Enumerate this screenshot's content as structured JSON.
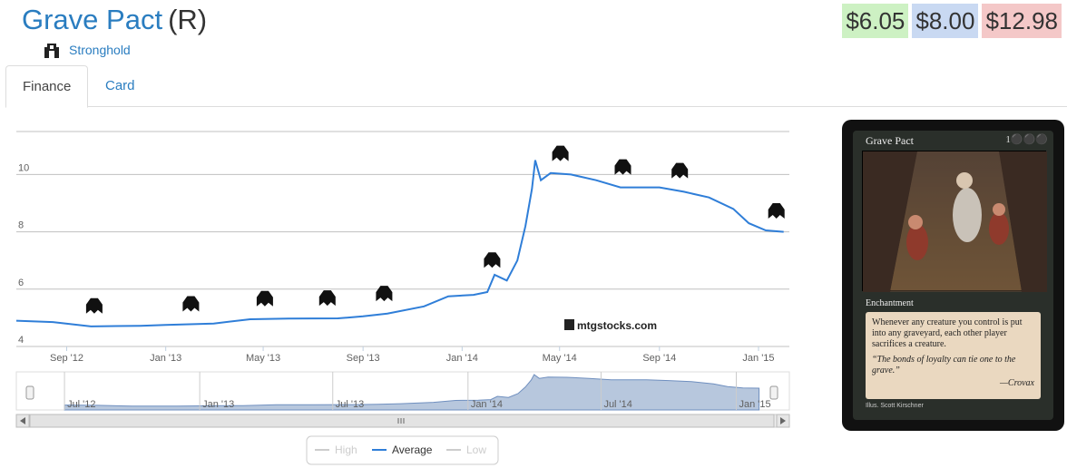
{
  "header": {
    "card_name": "Grave Pact",
    "rarity": "(R)",
    "set_name": "Stronghold",
    "set_icon": "stronghold-set-icon"
  },
  "prices": {
    "low": "$6.05",
    "average": "$8.00",
    "high": "$12.98"
  },
  "tabs": [
    {
      "label": "Finance",
      "active": true
    },
    {
      "label": "Card",
      "active": false
    }
  ],
  "chart_data": {
    "type": "line",
    "watermark": "mtgstocks.com",
    "y_ticks": [
      "4",
      "6",
      "8",
      "10"
    ],
    "ylim": [
      4,
      11.5
    ],
    "x_ticks": [
      "Sep '12",
      "Jan '13",
      "May '13",
      "Sep '13",
      "Jan '14",
      "May '14",
      "Sep '14",
      "Jan '15"
    ],
    "navigator_ticks": [
      "Jul '12",
      "Jan '13",
      "Jul '13",
      "Jan '14",
      "Jul '14",
      "Jan '15"
    ],
    "legend": [
      "High",
      "Average",
      "Low"
    ],
    "series": [
      {
        "name": "Average",
        "color": "#2f7ed8",
        "points": [
          [
            "2012-07-01",
            4.9
          ],
          [
            "2012-08-15",
            4.85
          ],
          [
            "2012-10-01",
            4.7
          ],
          [
            "2012-12-01",
            4.72
          ],
          [
            "2013-01-01",
            4.75
          ],
          [
            "2013-03-01",
            4.8
          ],
          [
            "2013-04-15",
            4.95
          ],
          [
            "2013-06-01",
            4.97
          ],
          [
            "2013-08-01",
            4.98
          ],
          [
            "2013-09-01",
            5.05
          ],
          [
            "2013-10-01",
            5.15
          ],
          [
            "2013-11-15",
            5.4
          ],
          [
            "2013-12-15",
            5.75
          ],
          [
            "2014-01-15",
            5.8
          ],
          [
            "2014-02-01",
            5.9
          ],
          [
            "2014-02-10",
            6.5
          ],
          [
            "2014-02-25",
            6.3
          ],
          [
            "2014-03-10",
            7.0
          ],
          [
            "2014-03-20",
            8.2
          ],
          [
            "2014-03-28",
            9.5
          ],
          [
            "2014-04-01",
            10.5
          ],
          [
            "2014-04-08",
            9.8
          ],
          [
            "2014-04-20",
            10.05
          ],
          [
            "2014-05-15",
            10.0
          ],
          [
            "2014-06-15",
            9.8
          ],
          [
            "2014-07-15",
            9.55
          ],
          [
            "2014-09-01",
            9.55
          ],
          [
            "2014-10-01",
            9.4
          ],
          [
            "2014-11-01",
            9.2
          ],
          [
            "2014-12-01",
            8.8
          ],
          [
            "2014-12-20",
            8.3
          ],
          [
            "2015-01-10",
            8.05
          ],
          [
            "2015-02-01",
            8.0
          ]
        ]
      }
    ],
    "set_release_markers": [
      {
        "date": "2012-10-05",
        "icon": "return-to-ravnica-icon"
      },
      {
        "date": "2013-02-01",
        "icon": "gatecrash-icon"
      },
      {
        "date": "2013-05-03",
        "icon": "dragons-maze-icon"
      },
      {
        "date": "2013-07-19",
        "icon": "m14-icon"
      },
      {
        "date": "2013-09-27",
        "icon": "theros-icon"
      },
      {
        "date": "2014-02-07",
        "icon": "born-of-the-gods-icon"
      },
      {
        "date": "2014-05-02",
        "icon": "journey-into-nyx-icon"
      },
      {
        "date": "2014-07-18",
        "icon": "m15-icon"
      },
      {
        "date": "2014-09-26",
        "icon": "khans-of-tarkir-icon"
      },
      {
        "date": "2015-01-23",
        "icon": "fate-reforged-icon"
      }
    ]
  },
  "card_image": {
    "name": "Grave Pact",
    "mana_cost": "1⚫⚫⚫",
    "type_line": "Enchantment",
    "rules_text": "Whenever any creature you control is put into any graveyard, each other player sacrifices a creature.",
    "flavor_text": "“The bonds of loyalty can tie one to the grave.”",
    "flavor_attribution": "—Crovax",
    "illustrator": "Illus. Scott Kirschner"
  }
}
